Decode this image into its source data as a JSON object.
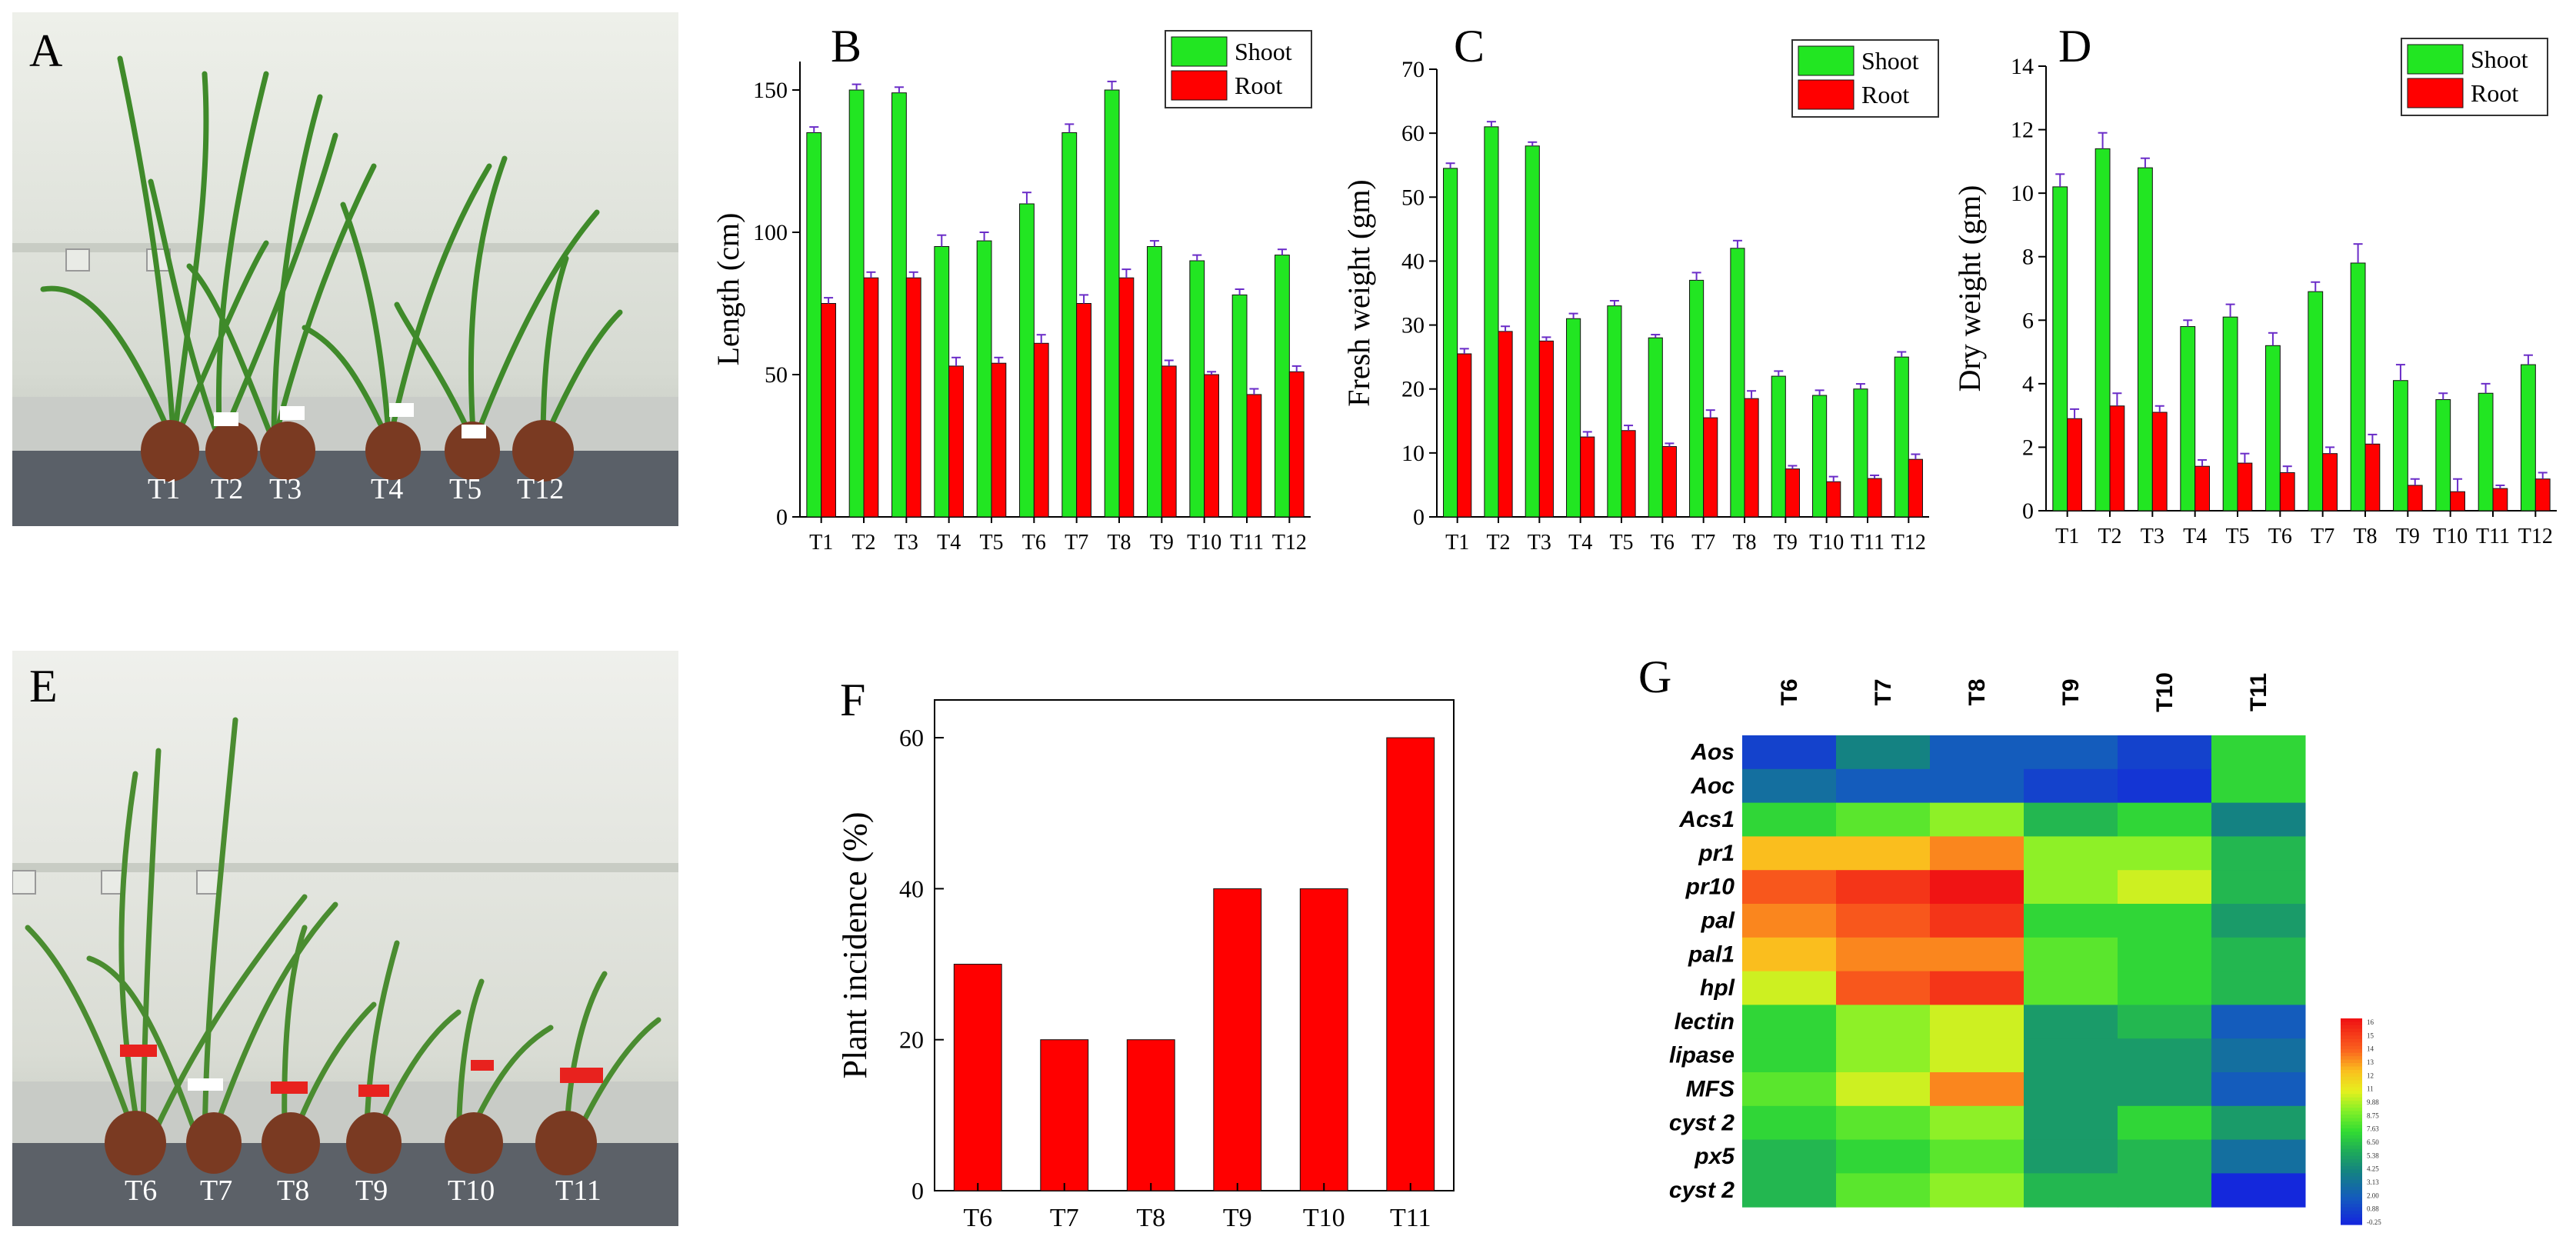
{
  "panels": {
    "a": {
      "letter": "A",
      "pot_labels": [
        "T1",
        "T2",
        "T3",
        "T4",
        "T5",
        "T12"
      ]
    },
    "e": {
      "letter": "E",
      "pot_labels": [
        "T6",
        "T7",
        "T8",
        "T9",
        "T10",
        "T11"
      ]
    }
  },
  "colors": {
    "shoot": "#22e622",
    "root": "#ff0000",
    "bar_f": "#ff0000"
  },
  "chart_data": [
    {
      "id": "B",
      "type": "bar",
      "letter": "B",
      "title": "",
      "xlabel": "",
      "ylabel": "Length (cm)",
      "ylim": [
        0,
        160
      ],
      "yticks": [
        0,
        50,
        100,
        150
      ],
      "legend": "top-right",
      "categories": [
        "T1",
        "T2",
        "T3",
        "T4",
        "T5",
        "T6",
        "T7",
        "T8",
        "T9",
        "T10",
        "T11",
        "T12"
      ],
      "series": [
        {
          "name": "Shoot",
          "values": [
            135,
            150,
            149,
            95,
            97,
            110,
            135,
            150,
            95,
            90,
            78,
            92
          ],
          "errors": [
            2,
            2,
            2,
            4,
            3,
            4,
            3,
            3,
            2,
            2,
            2,
            2
          ]
        },
        {
          "name": "Root",
          "values": [
            75,
            84,
            84,
            53,
            54,
            61,
            75,
            84,
            53,
            50,
            43,
            51
          ],
          "errors": [
            2,
            2,
            2,
            3,
            2,
            3,
            3,
            3,
            2,
            1,
            2,
            2
          ]
        }
      ]
    },
    {
      "id": "C",
      "type": "bar",
      "letter": "C",
      "title": "",
      "xlabel": "",
      "ylabel": "Fresh weight (gm)",
      "ylim": [
        0,
        70
      ],
      "yticks": [
        0,
        10,
        20,
        30,
        40,
        50,
        60,
        70
      ],
      "legend": "top-right",
      "categories": [
        "T1",
        "T2",
        "T3",
        "T4",
        "T5",
        "T6",
        "T7",
        "T8",
        "T9",
        "T10",
        "T11",
        "T12"
      ],
      "series": [
        {
          "name": "Shoot",
          "values": [
            54.5,
            61,
            58,
            31,
            33,
            28,
            37,
            42,
            22,
            19,
            20,
            25
          ],
          "errors": [
            0.8,
            0.8,
            0.6,
            0.8,
            0.8,
            0.5,
            1.2,
            1.2,
            0.8,
            0.8,
            0.8,
            0.8
          ]
        },
        {
          "name": "Root",
          "values": [
            25.5,
            29,
            27.5,
            12.5,
            13.5,
            11,
            15.5,
            18.5,
            7.5,
            5.5,
            6,
            9
          ],
          "errors": [
            0.8,
            0.8,
            0.6,
            0.8,
            0.8,
            0.5,
            1.2,
            1.2,
            0.5,
            0.8,
            0.5,
            0.8
          ]
        }
      ]
    },
    {
      "id": "D",
      "type": "bar",
      "letter": "D",
      "title": "",
      "xlabel": "",
      "ylabel": "Dry weight (gm)",
      "ylim": [
        0,
        14
      ],
      "yticks": [
        0,
        2,
        4,
        6,
        8,
        10,
        12,
        14
      ],
      "legend": "top-right",
      "categories": [
        "T1",
        "T2",
        "T3",
        "T4",
        "T5",
        "T6",
        "T7",
        "T8",
        "T9",
        "T10",
        "T11",
        "T12"
      ],
      "series": [
        {
          "name": "Shoot",
          "values": [
            10.2,
            11.4,
            10.8,
            5.8,
            6.1,
            5.2,
            6.9,
            7.8,
            4.1,
            3.5,
            3.7,
            4.6
          ],
          "errors": [
            0.4,
            0.5,
            0.3,
            0.2,
            0.4,
            0.4,
            0.3,
            0.6,
            0.5,
            0.2,
            0.3,
            0.3
          ]
        },
        {
          "name": "Root",
          "values": [
            2.9,
            3.3,
            3.1,
            1.4,
            1.5,
            1.2,
            1.8,
            2.1,
            0.8,
            0.6,
            0.7,
            1.0
          ],
          "errors": [
            0.3,
            0.4,
            0.2,
            0.2,
            0.3,
            0.2,
            0.2,
            0.3,
            0.2,
            0.4,
            0.1,
            0.2
          ]
        }
      ]
    },
    {
      "id": "F",
      "type": "bar",
      "letter": "F",
      "title": "",
      "xlabel": "",
      "ylabel": "Plant incidence (%)",
      "ylim": [
        0,
        65
      ],
      "yticks": [
        0,
        20,
        40,
        60
      ],
      "categories": [
        "T6",
        "T7",
        "T8",
        "T9",
        "T10",
        "T11"
      ],
      "values": [
        30,
        20,
        20,
        40,
        40,
        60
      ]
    },
    {
      "id": "G",
      "type": "heatmap",
      "letter": "G",
      "columns": [
        "T6",
        "T7",
        "T8",
        "T9",
        "T10",
        "T11"
      ],
      "rows": [
        "Aos",
        "Aoc",
        "Acs1",
        "pr1",
        "pr10",
        "pal",
        "pal1",
        "hpl",
        "lectin",
        "lipase",
        "MFS",
        "cyst 2",
        "px5",
        "cyst 2"
      ],
      "values": [
        [
          1,
          4,
          2,
          2,
          1,
          7
        ],
        [
          3,
          2,
          2,
          1,
          0.5,
          7
        ],
        [
          7,
          8,
          9,
          6,
          7,
          4
        ],
        [
          12,
          12,
          13,
          9,
          9,
          6
        ],
        [
          14,
          15,
          16,
          9,
          10,
          6
        ],
        [
          13,
          14,
          15,
          7,
          7,
          5
        ],
        [
          12,
          13,
          13,
          8,
          7,
          6
        ],
        [
          10,
          14,
          15,
          8,
          7,
          6
        ],
        [
          7,
          9,
          10,
          5,
          6,
          2
        ],
        [
          7,
          9,
          10,
          5,
          5,
          3
        ],
        [
          8,
          10,
          13,
          5,
          5,
          2
        ],
        [
          7,
          8,
          9,
          5,
          7,
          5
        ],
        [
          6,
          7,
          8,
          5,
          6,
          3
        ],
        [
          6,
          8,
          9,
          6,
          6,
          0
        ]
      ],
      "scale_labels": [
        "16",
        "15",
        "14",
        "13",
        "12",
        "11",
        "9.88",
        "8.75",
        "7.63",
        "6.50",
        "5.38",
        "4.25",
        "3.13",
        "2.00",
        "0.88",
        "-0.25"
      ]
    }
  ]
}
